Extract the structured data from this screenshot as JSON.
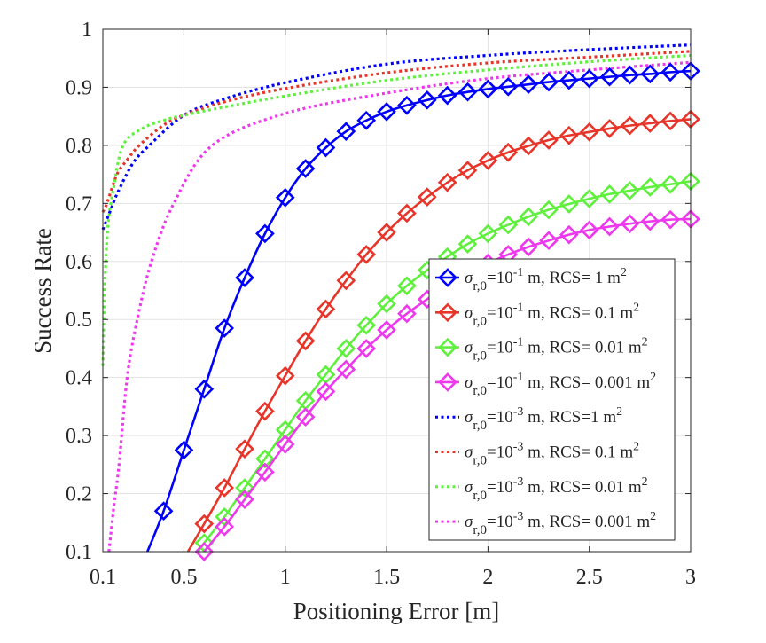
{
  "chart_data": {
    "type": "line",
    "title": "",
    "xlabel": "Positioning Error [m]",
    "ylabel": "Success Rate",
    "xlim": [
      0.1,
      3
    ],
    "ylim": [
      0.1,
      1
    ],
    "xticks": [
      0.1,
      0.5,
      1,
      1.5,
      2,
      2.5,
      3
    ],
    "xtick_labels": [
      "0.1",
      "0.5",
      "1",
      "1.5",
      "2",
      "2.5",
      "3"
    ],
    "yticks": [
      0.1,
      0.2,
      0.3,
      0.4,
      0.5,
      0.6,
      0.7,
      0.8,
      0.9,
      1
    ],
    "ytick_labels": [
      "0.1",
      "0.2",
      "0.3",
      "0.4",
      "0.5",
      "0.6",
      "0.7",
      "0.8",
      "0.9",
      "1"
    ],
    "grid": true,
    "legend_position": "bottom-right",
    "series": [
      {
        "name": "σr,0=10^-1 m, RCS= 1 m^2",
        "color": "#0000ff",
        "style": "solid",
        "marker": "diamond",
        "legend": {
          "sym": "σ",
          "sub": "r,0",
          "base": "=10",
          "exp": "-1",
          "mid": " m, RCS= 1 m",
          "exp2": "2"
        },
        "x": [
          0.32,
          0.4,
          0.5,
          0.6,
          0.7,
          0.8,
          0.9,
          1.0,
          1.1,
          1.2,
          1.3,
          1.4,
          1.5,
          1.6,
          1.7,
          1.8,
          1.9,
          2.0,
          2.1,
          2.2,
          2.3,
          2.4,
          2.5,
          2.6,
          2.7,
          2.8,
          2.9,
          3.0
        ],
        "y": [
          0.1,
          0.17,
          0.275,
          0.38,
          0.485,
          0.572,
          0.648,
          0.71,
          0.76,
          0.796,
          0.824,
          0.843,
          0.858,
          0.869,
          0.878,
          0.886,
          0.892,
          0.897,
          0.901,
          0.905,
          0.909,
          0.912,
          0.915,
          0.918,
          0.921,
          0.923,
          0.926,
          0.928
        ],
        "marker_from": 1
      },
      {
        "name": "σr,0=10^-1 m, RCS= 0.1 m^2",
        "color": "#e8352a",
        "style": "solid",
        "marker": "diamond",
        "legend": {
          "sym": "σ",
          "sub": "r,0",
          "base": "=10",
          "exp": "-1",
          "mid": " m, RCS= 0.1 m",
          "exp2": "2"
        },
        "x": [
          0.52,
          0.6,
          0.7,
          0.8,
          0.9,
          1.0,
          1.1,
          1.2,
          1.3,
          1.4,
          1.5,
          1.6,
          1.7,
          1.8,
          1.9,
          2.0,
          2.1,
          2.2,
          2.3,
          2.4,
          2.5,
          2.6,
          2.7,
          2.8,
          2.9,
          3.0
        ],
        "y": [
          0.1,
          0.148,
          0.21,
          0.277,
          0.342,
          0.403,
          0.463,
          0.518,
          0.567,
          0.612,
          0.65,
          0.683,
          0.711,
          0.736,
          0.757,
          0.774,
          0.788,
          0.799,
          0.809,
          0.817,
          0.823,
          0.829,
          0.834,
          0.838,
          0.842,
          0.845
        ],
        "marker_from": 1
      },
      {
        "name": "σr,0=10^-1 m, RCS= 0.01 m^2",
        "color": "#5ef03c",
        "style": "solid",
        "marker": "diamond",
        "legend": {
          "sym": "σ",
          "sub": "r,0",
          "base": "=10",
          "exp": "-1",
          "mid": " m, RCS= 0.01 m",
          "exp2": "2"
        },
        "x": [
          0.57,
          0.6,
          0.7,
          0.8,
          0.9,
          1.0,
          1.1,
          1.2,
          1.3,
          1.4,
          1.5,
          1.6,
          1.7,
          1.8,
          1.9,
          2.0,
          2.1,
          2.2,
          2.3,
          2.4,
          2.5,
          2.6,
          2.7,
          2.8,
          2.9,
          3.0
        ],
        "y": [
          0.1,
          0.115,
          0.16,
          0.21,
          0.26,
          0.31,
          0.36,
          0.405,
          0.45,
          0.49,
          0.527,
          0.558,
          0.585,
          0.608,
          0.63,
          0.648,
          0.663,
          0.677,
          0.689,
          0.699,
          0.708,
          0.716,
          0.722,
          0.728,
          0.733,
          0.738
        ],
        "marker_from": 1
      },
      {
        "name": "σr,0=10^-1 m, RCS= 0.001 m^2",
        "color": "#ee38ee",
        "style": "solid",
        "marker": "diamond",
        "legend": {
          "sym": "σ",
          "sub": "r,0",
          "base": "=10",
          "exp": "-1",
          "mid": " m, RCS= 0.001 m",
          "exp2": "2"
        },
        "x": [
          0.6,
          0.7,
          0.8,
          0.9,
          1.0,
          1.1,
          1.2,
          1.3,
          1.4,
          1.5,
          1.6,
          1.7,
          1.8,
          1.9,
          2.0,
          2.1,
          2.2,
          2.3,
          2.4,
          2.5,
          2.6,
          2.7,
          2.8,
          2.9,
          3.0
        ],
        "y": [
          0.1,
          0.143,
          0.19,
          0.237,
          0.285,
          0.332,
          0.376,
          0.414,
          0.45,
          0.482,
          0.51,
          0.535,
          0.56,
          0.58,
          0.597,
          0.612,
          0.625,
          0.636,
          0.646,
          0.654,
          0.66,
          0.665,
          0.669,
          0.672,
          0.673
        ],
        "marker_from": 0
      },
      {
        "name": "σr,0=10^-3 m, RCS=1 m^2",
        "color": "#0000ff",
        "style": "dotted",
        "marker": "none",
        "legend": {
          "sym": "σ",
          "sub": "r,0",
          "base": "=10",
          "exp": "-3",
          "mid": " m, RCS=1 m",
          "exp2": "2"
        },
        "x": [
          0.1,
          0.14,
          0.175,
          0.25,
          0.33,
          0.5,
          0.7,
          1.0,
          1.5,
          2.0,
          2.5,
          3.0
        ],
        "y": [
          0.655,
          0.69,
          0.72,
          0.77,
          0.8,
          0.852,
          0.88,
          0.908,
          0.94,
          0.955,
          0.965,
          0.973
        ]
      },
      {
        "name": "σr,0=10^-3 m, RCS= 0.1 m^2",
        "color": "#e8352a",
        "style": "dotted",
        "marker": "none",
        "legend": {
          "sym": "σ",
          "sub": "r,0",
          "base": "=10",
          "exp": "-3",
          "mid": " m, RCS= 0.1 m",
          "exp2": "2"
        },
        "x": [
          0.1,
          0.12,
          0.17,
          0.22,
          0.28,
          0.4,
          0.5,
          0.7,
          1.0,
          1.5,
          2.0,
          2.5,
          3.0
        ],
        "y": [
          0.685,
          0.7,
          0.75,
          0.775,
          0.8,
          0.835,
          0.852,
          0.875,
          0.898,
          0.925,
          0.942,
          0.952,
          0.962
        ]
      },
      {
        "name": "σr,0=10^-3 m, RCS= 0.01 m^2",
        "color": "#5ef03c",
        "style": "dotted",
        "marker": "none",
        "legend": {
          "sym": "σ",
          "sub": "r,0",
          "base": "=10",
          "exp": "-3",
          "mid": " m, RCS= 0.01 m",
          "exp2": "2"
        },
        "x": [
          0.1,
          0.11,
          0.125,
          0.15,
          0.2,
          0.3,
          0.4,
          0.5,
          0.7,
          1.0,
          1.5,
          2.0,
          2.5,
          3.0
        ],
        "y": [
          0.42,
          0.56,
          0.66,
          0.72,
          0.8,
          0.83,
          0.843,
          0.852,
          0.866,
          0.885,
          0.912,
          0.93,
          0.944,
          0.955
        ]
      },
      {
        "name": "σr,0=10^-3 m, RCS= 0.001 m^2",
        "color": "#ee38ee",
        "style": "dotted",
        "marker": "none",
        "legend": {
          "sym": "σ",
          "sub": "r,0",
          "base": "=10",
          "exp": "-3",
          "mid": " m, RCS= 0.001 m",
          "exp2": "2"
        },
        "x": [
          0.13,
          0.155,
          0.18,
          0.22,
          0.27,
          0.34,
          0.45,
          0.64,
          1.0,
          1.5,
          2.0,
          2.5,
          3.0
        ],
        "y": [
          0.1,
          0.18,
          0.25,
          0.4,
          0.5,
          0.6,
          0.7,
          0.8,
          0.855,
          0.89,
          0.915,
          0.93,
          0.943
        ]
      }
    ]
  }
}
